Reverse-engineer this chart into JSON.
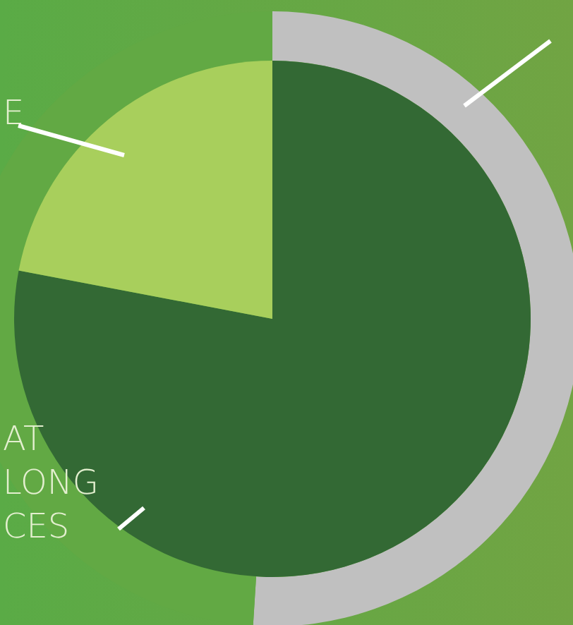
{
  "chart_data": [
    {
      "type": "donut",
      "categories": [
        null,
        null
      ],
      "values": [
        51,
        49
      ],
      "colors": [
        "#c0c0c0",
        "#62a944"
      ]
    },
    {
      "type": "pie",
      "categories": [
        "AT LONG CES",
        "E"
      ],
      "values": [
        78,
        22
      ],
      "colors": [
        "#336934",
        "#a8cf5c"
      ]
    }
  ]
}
